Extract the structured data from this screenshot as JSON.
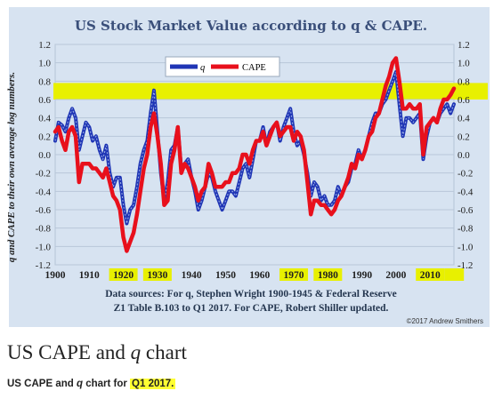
{
  "caption": {
    "text": "US CAPE and ",
    "q": "q",
    "rest": " chart"
  },
  "subcaption": {
    "prefix": "US CAPE and ",
    "q": "q",
    "middle": " chart for ",
    "highlight": "Q1 2017."
  },
  "colors": {
    "panel": "#d7e3f1",
    "title": "#3a4f7a",
    "q": "#1f35b5",
    "cape": "#e8101c",
    "highlight": "#e8f000"
  },
  "chart_data": {
    "type": "line",
    "title": "US Stock Market Value according to q & CAPE.",
    "ylabel": "q and CAPE to their own average log numbers.",
    "xlim": [
      1900,
      2017
    ],
    "ylim": [
      -1.2,
      1.2
    ],
    "yticks": [
      "1.2",
      "1.0",
      "0.8",
      "0.6",
      "0.4",
      "0.2",
      "0.0",
      "-0.2",
      "-0.4",
      "-0.6",
      "-0.8",
      "-1.0",
      "-1.2"
    ],
    "xticks": [
      "1900",
      "1910",
      "1920",
      "1930",
      "1940",
      "1950",
      "1960",
      "1970",
      "1980",
      "1990",
      "2000",
      "2010"
    ],
    "highlighted_xticks": [
      "1920",
      "1930",
      "1970",
      "1980",
      "2010"
    ],
    "highlight_band": [
      0.6,
      0.78
    ],
    "legend": [
      "q",
      "CAPE"
    ],
    "legend_position": "top-center",
    "source": [
      "Data sources: For q, Stephen Wright 1900-1945 & Federal Reserve",
      "Z1 Table B.103 to Q1 2017. For CAPE, Robert Shiller updated."
    ],
    "copyright": "©2017 Andrew Smithers",
    "series": [
      {
        "name": "q",
        "x": [
          1900,
          1901,
          1902,
          1903,
          1904,
          1905,
          1906,
          1907,
          1908,
          1909,
          1910,
          1911,
          1912,
          1913,
          1914,
          1915,
          1916,
          1917,
          1918,
          1919,
          1920,
          1921,
          1922,
          1923,
          1924,
          1925,
          1926,
          1927,
          1928,
          1929,
          1930,
          1931,
          1932,
          1933,
          1934,
          1935,
          1936,
          1937,
          1938,
          1939,
          1940,
          1941,
          1942,
          1943,
          1944,
          1945,
          1946,
          1947,
          1948,
          1949,
          1950,
          1951,
          1952,
          1953,
          1954,
          1955,
          1956,
          1957,
          1958,
          1959,
          1960,
          1961,
          1962,
          1963,
          1964,
          1965,
          1966,
          1967,
          1968,
          1969,
          1970,
          1971,
          1972,
          1973,
          1974,
          1975,
          1976,
          1977,
          1978,
          1979,
          1980,
          1981,
          1982,
          1983,
          1984,
          1985,
          1986,
          1987,
          1988,
          1989,
          1990,
          1991,
          1992,
          1993,
          1994,
          1995,
          1996,
          1997,
          1998,
          1999,
          2000,
          2001,
          2002,
          2003,
          2004,
          2005,
          2006,
          2007,
          2008,
          2009,
          2010,
          2011,
          2012,
          2013,
          2014,
          2015,
          2016,
          2017
        ],
        "y": [
          0.15,
          0.35,
          0.32,
          0.25,
          0.4,
          0.5,
          0.4,
          0.05,
          0.2,
          0.35,
          0.3,
          0.15,
          0.2,
          0.05,
          -0.05,
          0.1,
          -0.2,
          -0.35,
          -0.25,
          -0.25,
          -0.55,
          -0.75,
          -0.6,
          -0.55,
          -0.35,
          -0.1,
          0.05,
          0.15,
          0.45,
          0.7,
          0.25,
          -0.2,
          -0.5,
          -0.3,
          0.05,
          0.1,
          0.3,
          -0.15,
          -0.1,
          -0.05,
          -0.25,
          -0.4,
          -0.6,
          -0.5,
          -0.35,
          -0.2,
          -0.25,
          -0.4,
          -0.5,
          -0.6,
          -0.5,
          -0.4,
          -0.4,
          -0.45,
          -0.3,
          -0.15,
          -0.1,
          -0.25,
          -0.05,
          0.15,
          0.15,
          0.3,
          0.1,
          0.25,
          0.3,
          0.35,
          0.15,
          0.3,
          0.4,
          0.5,
          0.25,
          0.1,
          0.15,
          0.0,
          -0.2,
          -0.45,
          -0.3,
          -0.35,
          -0.5,
          -0.45,
          -0.55,
          -0.55,
          -0.5,
          -0.35,
          -0.45,
          -0.35,
          -0.3,
          -0.15,
          -0.1,
          0.05,
          -0.05,
          0.05,
          0.2,
          0.35,
          0.45,
          0.45,
          0.55,
          0.6,
          0.7,
          0.8,
          0.9,
          0.55,
          0.2,
          0.4,
          0.4,
          0.35,
          0.4,
          0.45,
          -0.05,
          0.2,
          0.35,
          0.4,
          0.35,
          0.45,
          0.5,
          0.55,
          0.45,
          0.55
        ]
      },
      {
        "name": "CAPE",
        "x": [
          1900,
          1901,
          1902,
          1903,
          1904,
          1905,
          1906,
          1907,
          1908,
          1909,
          1910,
          1911,
          1912,
          1913,
          1914,
          1915,
          1916,
          1917,
          1918,
          1919,
          1920,
          1921,
          1922,
          1923,
          1924,
          1925,
          1926,
          1927,
          1928,
          1929,
          1930,
          1931,
          1932,
          1933,
          1934,
          1935,
          1936,
          1937,
          1938,
          1939,
          1940,
          1941,
          1942,
          1943,
          1944,
          1945,
          1946,
          1947,
          1948,
          1949,
          1950,
          1951,
          1952,
          1953,
          1954,
          1955,
          1956,
          1957,
          1958,
          1959,
          1960,
          1961,
          1962,
          1963,
          1964,
          1965,
          1966,
          1967,
          1968,
          1969,
          1970,
          1971,
          1972,
          1973,
          1974,
          1975,
          1976,
          1977,
          1978,
          1979,
          1980,
          1981,
          1982,
          1983,
          1984,
          1985,
          1986,
          1987,
          1988,
          1989,
          1990,
          1991,
          1992,
          1993,
          1994,
          1995,
          1996,
          1997,
          1998,
          1999,
          2000,
          2001,
          2002,
          2003,
          2004,
          2005,
          2006,
          2007,
          2008,
          2009,
          2010,
          2011,
          2012,
          2013,
          2014,
          2015,
          2016,
          2017
        ],
        "y": [
          0.25,
          0.3,
          0.15,
          0.05,
          0.25,
          0.3,
          0.2,
          -0.3,
          -0.1,
          -0.1,
          -0.1,
          -0.15,
          -0.15,
          -0.2,
          -0.25,
          -0.15,
          -0.3,
          -0.45,
          -0.5,
          -0.6,
          -0.9,
          -1.05,
          -0.95,
          -0.85,
          -0.65,
          -0.4,
          -0.15,
          0.0,
          0.3,
          0.45,
          0.2,
          -0.1,
          -0.55,
          -0.5,
          -0.1,
          0.05,
          0.3,
          -0.2,
          -0.1,
          -0.15,
          -0.25,
          -0.35,
          -0.5,
          -0.4,
          -0.35,
          -0.1,
          -0.2,
          -0.35,
          -0.35,
          -0.35,
          -0.3,
          -0.3,
          -0.2,
          -0.2,
          -0.15,
          0.0,
          0.0,
          -0.1,
          0.05,
          0.15,
          0.15,
          0.25,
          0.1,
          0.2,
          0.3,
          0.35,
          0.2,
          0.25,
          0.3,
          0.3,
          0.15,
          0.25,
          0.2,
          0.05,
          -0.3,
          -0.65,
          -0.5,
          -0.5,
          -0.55,
          -0.55,
          -0.6,
          -0.65,
          -0.6,
          -0.5,
          -0.45,
          -0.35,
          -0.25,
          -0.1,
          -0.15,
          0.0,
          -0.05,
          0.05,
          0.2,
          0.25,
          0.4,
          0.45,
          0.6,
          0.75,
          0.85,
          1.0,
          1.05,
          0.8,
          0.5,
          0.5,
          0.55,
          0.5,
          0.5,
          0.55,
          0.0,
          0.3,
          0.35,
          0.4,
          0.35,
          0.5,
          0.6,
          0.6,
          0.65,
          0.72
        ]
      }
    ]
  }
}
